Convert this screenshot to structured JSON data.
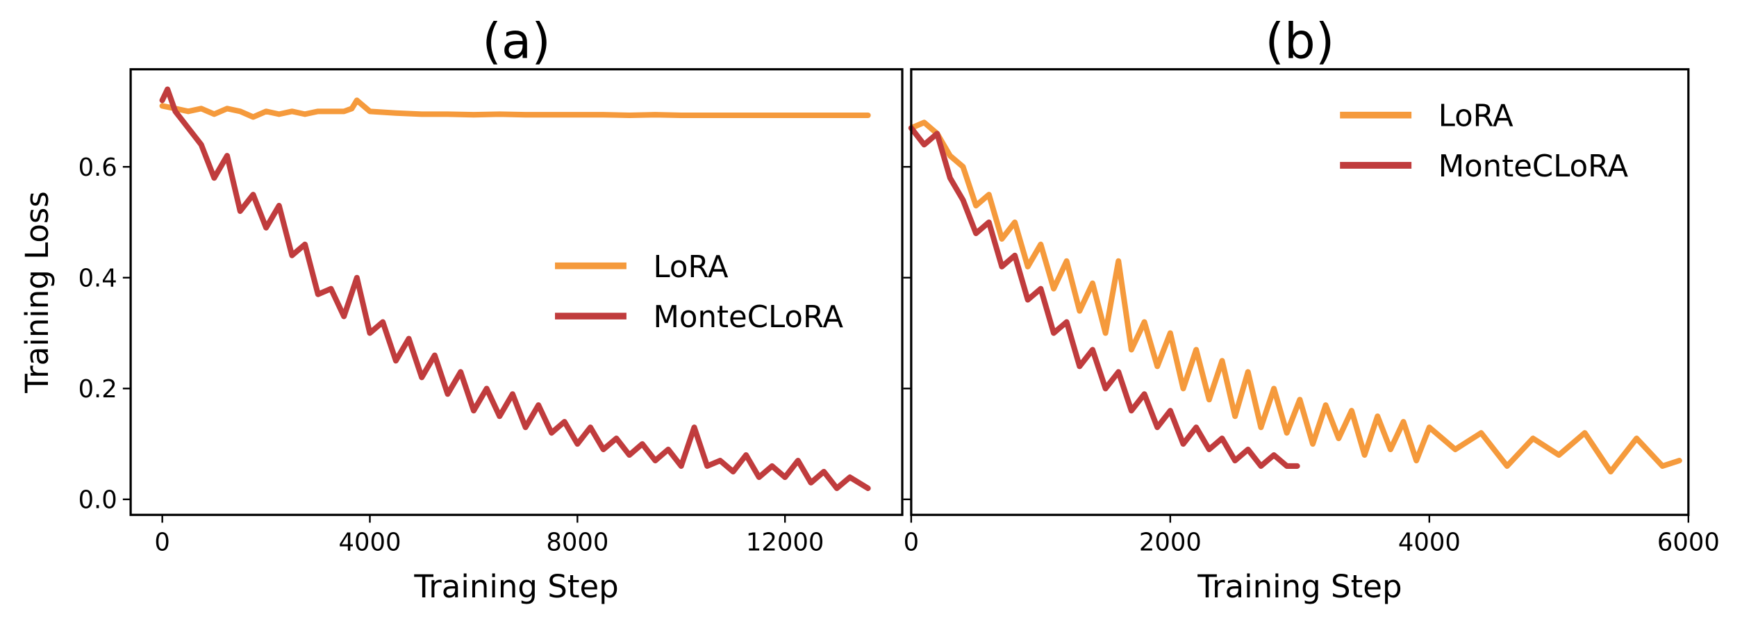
{
  "colors": {
    "lora": "#F59A3C",
    "monteclora": "#C03C3D",
    "axis": "#000000"
  },
  "chart_data": [
    {
      "type": "line",
      "title": "(a)",
      "xlabel": "Training Step",
      "ylabel": "Training Loss",
      "xlim": [
        -610,
        14260
      ],
      "ylim": [
        -0.028,
        0.776
      ],
      "xticks": [
        0,
        4000,
        8000,
        12000
      ],
      "xtick_labels": [
        "0",
        "4000",
        "8000",
        "12000"
      ],
      "yticks": [
        0.0,
        0.2,
        0.4,
        0.6
      ],
      "ytick_labels": [
        "0.0",
        "0.2",
        "0.4",
        "0.6"
      ],
      "grid": false,
      "legend": "center-right",
      "series": [
        {
          "name": "LoRA",
          "color_key": "lora",
          "x": [
            0,
            250,
            500,
            750,
            1000,
            1250,
            1500,
            1750,
            2000,
            2250,
            2500,
            2750,
            3000,
            3250,
            3500,
            3650,
            3750,
            4000,
            4500,
            5000,
            5500,
            6000,
            6500,
            7000,
            7500,
            8000,
            8500,
            9000,
            9500,
            10000,
            10500,
            11000,
            11500,
            12000,
            12500,
            13000,
            13600
          ],
          "y": [
            0.71,
            0.705,
            0.7,
            0.705,
            0.695,
            0.705,
            0.7,
            0.69,
            0.7,
            0.695,
            0.7,
            0.695,
            0.7,
            0.7,
            0.7,
            0.705,
            0.72,
            0.7,
            0.697,
            0.695,
            0.695,
            0.694,
            0.695,
            0.694,
            0.694,
            0.694,
            0.694,
            0.693,
            0.694,
            0.693,
            0.693,
            0.693,
            0.693,
            0.693,
            0.693,
            0.693,
            0.693
          ]
        },
        {
          "name": "MonteCLoRA",
          "color_key": "monteclora",
          "x": [
            0,
            100,
            250,
            500,
            750,
            1000,
            1250,
            1500,
            1750,
            2000,
            2250,
            2500,
            2750,
            3000,
            3250,
            3500,
            3750,
            4000,
            4250,
            4500,
            4750,
            5000,
            5250,
            5500,
            5750,
            6000,
            6250,
            6500,
            6750,
            7000,
            7250,
            7500,
            7750,
            8000,
            8250,
            8500,
            8750,
            9000,
            9250,
            9500,
            9750,
            10000,
            10250,
            10500,
            10750,
            11000,
            11250,
            11500,
            11750,
            12000,
            12250,
            12500,
            12750,
            13000,
            13250,
            13600
          ],
          "y": [
            0.72,
            0.74,
            0.7,
            0.67,
            0.64,
            0.58,
            0.62,
            0.52,
            0.55,
            0.49,
            0.53,
            0.44,
            0.46,
            0.37,
            0.38,
            0.33,
            0.4,
            0.3,
            0.32,
            0.25,
            0.29,
            0.22,
            0.26,
            0.19,
            0.23,
            0.16,
            0.2,
            0.15,
            0.19,
            0.13,
            0.17,
            0.12,
            0.14,
            0.1,
            0.13,
            0.09,
            0.11,
            0.08,
            0.1,
            0.07,
            0.09,
            0.06,
            0.13,
            0.06,
            0.07,
            0.05,
            0.08,
            0.04,
            0.06,
            0.04,
            0.07,
            0.03,
            0.05,
            0.02,
            0.04,
            0.02
          ]
        }
      ]
    },
    {
      "type": "line",
      "title": "(b)",
      "xlabel": "Training Step",
      "ylabel": "",
      "xlim": [
        0,
        6000
      ],
      "ylim": [
        -0.028,
        0.776
      ],
      "xticks": [
        0,
        2000,
        4000,
        6000
      ],
      "xtick_labels": [
        "0",
        "2000",
        "4000",
        "6000"
      ],
      "yticks": [
        0.0,
        0.2,
        0.4,
        0.6
      ],
      "grid": false,
      "legend": "upper-right",
      "series": [
        {
          "name": "LoRA",
          "color_key": "lora",
          "x": [
            0,
            100,
            200,
            300,
            400,
            500,
            600,
            700,
            800,
            900,
            1000,
            1100,
            1200,
            1300,
            1400,
            1500,
            1600,
            1700,
            1800,
            1900,
            2000,
            2100,
            2200,
            2300,
            2400,
            2500,
            2600,
            2700,
            2800,
            2900,
            3000,
            3100,
            3200,
            3300,
            3400,
            3500,
            3600,
            3700,
            3800,
            3900,
            4000,
            4200,
            4400,
            4600,
            4800,
            5000,
            5200,
            5400,
            5600,
            5800,
            5930
          ],
          "y": [
            0.67,
            0.68,
            0.66,
            0.62,
            0.6,
            0.53,
            0.55,
            0.47,
            0.5,
            0.42,
            0.46,
            0.38,
            0.43,
            0.34,
            0.39,
            0.3,
            0.43,
            0.27,
            0.32,
            0.24,
            0.3,
            0.2,
            0.27,
            0.18,
            0.25,
            0.15,
            0.23,
            0.13,
            0.2,
            0.12,
            0.18,
            0.1,
            0.17,
            0.11,
            0.16,
            0.08,
            0.15,
            0.09,
            0.14,
            0.07,
            0.13,
            0.09,
            0.12,
            0.06,
            0.11,
            0.08,
            0.12,
            0.05,
            0.11,
            0.06,
            0.07
          ]
        },
        {
          "name": "MonteCLoRA",
          "color_key": "monteclora",
          "x": [
            0,
            100,
            200,
            300,
            400,
            500,
            600,
            700,
            800,
            900,
            1000,
            1100,
            1200,
            1300,
            1400,
            1500,
            1600,
            1700,
            1800,
            1900,
            2000,
            2100,
            2200,
            2300,
            2400,
            2500,
            2600,
            2700,
            2800,
            2900,
            2980
          ],
          "y": [
            0.67,
            0.64,
            0.66,
            0.58,
            0.54,
            0.48,
            0.5,
            0.42,
            0.44,
            0.36,
            0.38,
            0.3,
            0.32,
            0.24,
            0.27,
            0.2,
            0.23,
            0.16,
            0.19,
            0.13,
            0.16,
            0.1,
            0.13,
            0.09,
            0.11,
            0.07,
            0.09,
            0.06,
            0.08,
            0.06,
            0.06
          ]
        }
      ]
    }
  ]
}
